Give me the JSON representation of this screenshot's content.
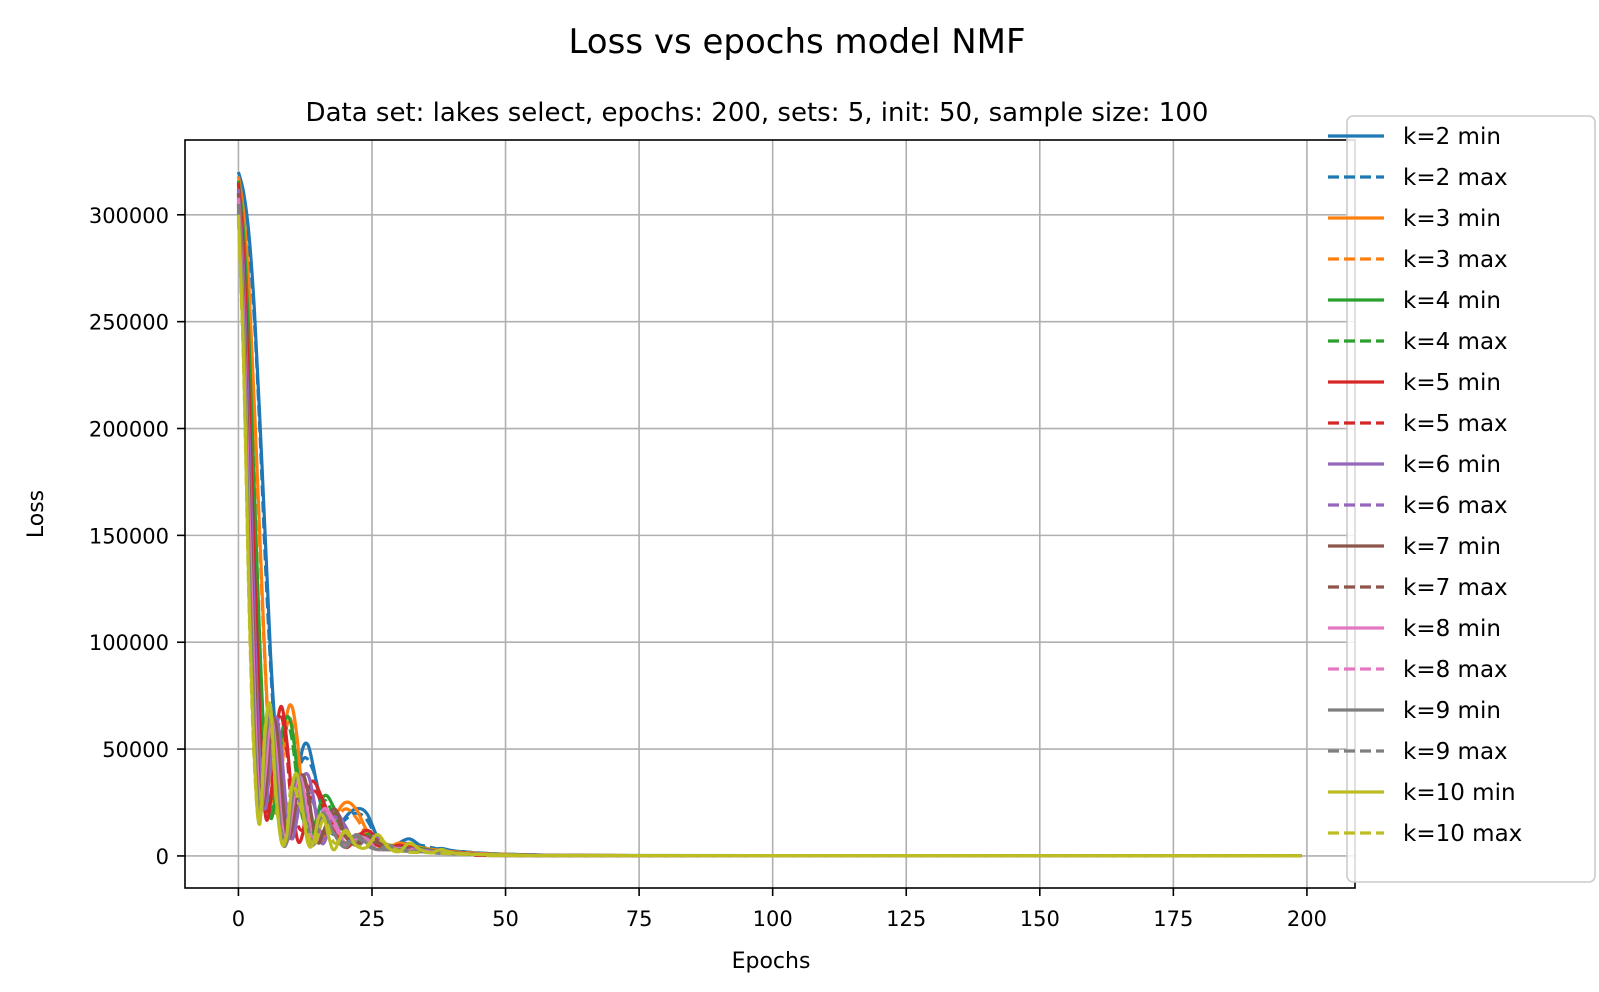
{
  "chart_data": {
    "type": "line",
    "suptitle": "Loss vs epochs model NMF",
    "title": "Data set:  lakes select, epochs: 200, sets: 5, init: 50, sample size: 100",
    "xlabel": "Epochs",
    "ylabel": "Loss",
    "xlim": [
      -10,
      209
    ],
    "ylim": [
      -15000,
      335000
    ],
    "xticks": [
      0,
      25,
      50,
      75,
      100,
      125,
      150,
      175,
      200
    ],
    "yticks": [
      0,
      50000,
      100000,
      150000,
      200000,
      250000,
      300000
    ],
    "xtick_labels": [
      "0",
      "25",
      "50",
      "75",
      "100",
      "125",
      "150",
      "175",
      "200"
    ],
    "ytick_labels": [
      "0",
      "50000",
      "100000",
      "150000",
      "200000",
      "250000",
      "300000"
    ],
    "grid": true,
    "legend_position": "right, outside axes",
    "x_range": [
      0,
      199
    ],
    "series": [
      {
        "name": "k=2 min",
        "color": "#1f77b4",
        "style": "solid",
        "x": [
          0,
          1,
          2,
          3,
          4,
          5,
          6,
          7,
          8,
          9,
          10,
          11,
          12,
          13,
          14,
          16,
          18,
          20,
          22,
          24,
          26,
          28,
          30,
          32,
          34,
          36,
          38,
          40,
          44,
          48,
          52,
          56,
          60,
          65,
          70,
          199
        ],
        "y": [
          320000,
          310000,
          290000,
          255000,
          205000,
          150000,
          95000,
          55000,
          25000,
          10000,
          20000,
          35000,
          50000,
          52000,
          42000,
          18000,
          10000,
          18000,
          22000,
          20000,
          9000,
          3000,
          6000,
          8000,
          5000,
          3000,
          3500,
          2500,
          1500,
          1000,
          700,
          500,
          300,
          200,
          100,
          100
        ]
      },
      {
        "name": "k=2 max",
        "color": "#1f77b4",
        "style": "dashed",
        "x": [
          0,
          1,
          2,
          3,
          4,
          5,
          6,
          7,
          8,
          9,
          10,
          12,
          14,
          16,
          18,
          20,
          22,
          24,
          26,
          28,
          30,
          34,
          38,
          42,
          48,
          56,
          65,
          199
        ],
        "y": [
          315000,
          305000,
          285000,
          250000,
          200000,
          140000,
          90000,
          50000,
          22000,
          12000,
          25000,
          45000,
          40000,
          20000,
          12000,
          17000,
          20000,
          17000,
          8000,
          4000,
          6000,
          5000,
          3000,
          2000,
          1000,
          500,
          200,
          100
        ]
      },
      {
        "name": "k=3 min",
        "color": "#ff7f0e",
        "style": "solid",
        "x": [
          0,
          1,
          2,
          3,
          4,
          5,
          6,
          7,
          8,
          9,
          10,
          11,
          12,
          14,
          16,
          18,
          20,
          22,
          24,
          26,
          28,
          30,
          34,
          38,
          42,
          48,
          56,
          65,
          199
        ],
        "y": [
          318000,
          300000,
          265000,
          210000,
          150000,
          90000,
          45000,
          20000,
          40000,
          65000,
          70000,
          55000,
          30000,
          10000,
          8000,
          18000,
          25000,
          22000,
          12000,
          5000,
          3000,
          6000,
          4000,
          2500,
          1500,
          800,
          400,
          200,
          100
        ]
      },
      {
        "name": "k=3 max",
        "color": "#ff7f0e",
        "style": "dashed",
        "x": [
          0,
          1,
          2,
          3,
          4,
          5,
          6,
          7,
          8,
          9,
          10,
          12,
          14,
          16,
          18,
          20,
          22,
          24,
          26,
          30,
          35,
          40,
          48,
          56,
          65,
          199
        ],
        "y": [
          314000,
          296000,
          260000,
          205000,
          145000,
          88000,
          42000,
          22000,
          38000,
          60000,
          62000,
          30000,
          12000,
          9000,
          16000,
          22000,
          18000,
          10000,
          5000,
          5000,
          3000,
          2000,
          900,
          400,
          200,
          100
        ]
      },
      {
        "name": "k=4 min",
        "color": "#2ca02c",
        "style": "solid",
        "x": [
          0,
          1,
          2,
          3,
          4,
          5,
          6,
          7,
          8,
          9,
          10,
          11,
          12,
          13,
          14,
          16,
          18,
          20,
          22,
          24,
          26,
          28,
          30,
          34,
          38,
          44,
          50,
          58,
          65,
          199
        ],
        "y": [
          316000,
          290000,
          240000,
          170000,
          100000,
          45000,
          18000,
          30000,
          55000,
          65000,
          60000,
          40000,
          20000,
          8000,
          12000,
          28000,
          22000,
          10000,
          6000,
          10000,
          9000,
          5000,
          4000,
          3500,
          2000,
          1000,
          600,
          300,
          200,
          100
        ]
      },
      {
        "name": "k=4 max",
        "color": "#2ca02c",
        "style": "dashed",
        "x": [
          0,
          1,
          2,
          3,
          4,
          5,
          6,
          7,
          8,
          9,
          10,
          12,
          14,
          16,
          18,
          20,
          22,
          24,
          26,
          30,
          36,
          44,
          52,
          60,
          199
        ],
        "y": [
          312000,
          286000,
          235000,
          165000,
          96000,
          42000,
          20000,
          32000,
          52000,
          60000,
          55000,
          18000,
          14000,
          26000,
          18000,
          9000,
          7000,
          9000,
          7000,
          4000,
          2500,
          1000,
          500,
          200,
          100
        ]
      },
      {
        "name": "k=5 min",
        "color": "#d62728",
        "style": "solid",
        "x": [
          0,
          1,
          2,
          3,
          4,
          5,
          6,
          7,
          8,
          9,
          10,
          11,
          12,
          13,
          14,
          16,
          18,
          20,
          22,
          24,
          26,
          28,
          30,
          34,
          38,
          44,
          50,
          58,
          199
        ],
        "y": [
          315000,
          280000,
          215000,
          135000,
          65000,
          20000,
          25000,
          55000,
          70000,
          55000,
          28000,
          8000,
          10000,
          28000,
          35000,
          25000,
          12000,
          4000,
          8000,
          12000,
          8000,
          3000,
          5000,
          3000,
          2000,
          1000,
          500,
          200,
          100
        ]
      },
      {
        "name": "k=5 max",
        "color": "#d62728",
        "style": "dashed",
        "x": [
          0,
          1,
          2,
          3,
          4,
          5,
          6,
          7,
          8,
          9,
          10,
          12,
          14,
          16,
          18,
          20,
          22,
          24,
          26,
          30,
          36,
          44,
          52,
          60,
          199
        ],
        "y": [
          310000,
          275000,
          210000,
          130000,
          62000,
          22000,
          27000,
          52000,
          65000,
          50000,
          25000,
          12000,
          30000,
          22000,
          10000,
          6000,
          10000,
          9000,
          5000,
          4000,
          2200,
          900,
          400,
          200,
          100
        ]
      },
      {
        "name": "k=6 min",
        "color": "#9467bd",
        "style": "solid",
        "x": [
          0,
          1,
          2,
          3,
          4,
          5,
          6,
          7,
          8,
          9,
          10,
          11,
          12,
          13,
          14,
          15,
          16,
          18,
          20,
          22,
          24,
          26,
          28,
          30,
          34,
          38,
          44,
          52,
          60,
          199
        ],
        "y": [
          312000,
          270000,
          195000,
          110000,
          45000,
          22000,
          45000,
          65000,
          50000,
          22000,
          8000,
          18000,
          35000,
          38000,
          28000,
          12000,
          6000,
          20000,
          14000,
          5000,
          8000,
          9000,
          4000,
          4000,
          3000,
          1800,
          900,
          400,
          200,
          100
        ]
      },
      {
        "name": "k=6 max",
        "color": "#9467bd",
        "style": "dashed",
        "x": [
          0,
          1,
          2,
          3,
          4,
          5,
          6,
          7,
          8,
          9,
          10,
          12,
          14,
          16,
          18,
          20,
          22,
          24,
          26,
          30,
          36,
          44,
          52,
          60,
          199
        ],
        "y": [
          308000,
          265000,
          190000,
          105000,
          42000,
          24000,
          43000,
          60000,
          45000,
          20000,
          10000,
          32000,
          25000,
          8000,
          18000,
          12000,
          6000,
          8000,
          6000,
          3500,
          2000,
          900,
          400,
          200,
          100
        ]
      },
      {
        "name": "k=7 min",
        "color": "#8c564b",
        "style": "solid",
        "x": [
          0,
          1,
          2,
          3,
          4,
          5,
          6,
          7,
          8,
          9,
          10,
          11,
          12,
          13,
          14,
          15,
          16,
          18,
          20,
          22,
          24,
          26,
          28,
          30,
          34,
          38,
          44,
          52,
          60,
          199
        ],
        "y": [
          310000,
          260000,
          175000,
          90000,
          30000,
          28000,
          58000,
          62000,
          35000,
          10000,
          12000,
          30000,
          38000,
          30000,
          14000,
          6000,
          12000,
          22000,
          10000,
          5000,
          9000,
          7000,
          3000,
          4000,
          2500,
          1500,
          800,
          400,
          200,
          100
        ]
      },
      {
        "name": "k=7 max",
        "color": "#8c564b",
        "style": "dashed",
        "x": [
          0,
          1,
          2,
          3,
          4,
          5,
          6,
          7,
          8,
          9,
          10,
          12,
          14,
          16,
          18,
          20,
          22,
          24,
          26,
          30,
          36,
          44,
          52,
          60,
          199
        ],
        "y": [
          306000,
          255000,
          170000,
          86000,
          28000,
          30000,
          55000,
          58000,
          32000,
          12000,
          14000,
          35000,
          16000,
          10000,
          20000,
          9000,
          6000,
          8000,
          6000,
          3500,
          2000,
          900,
          400,
          200,
          100
        ]
      },
      {
        "name": "k=8 min",
        "color": "#e377c2",
        "style": "solid",
        "x": [
          0,
          1,
          2,
          3,
          4,
          5,
          6,
          7,
          8,
          9,
          10,
          11,
          12,
          13,
          14,
          15,
          16,
          18,
          20,
          22,
          24,
          26,
          28,
          30,
          34,
          38,
          44,
          52,
          60,
          199
        ],
        "y": [
          308000,
          250000,
          160000,
          75000,
          22000,
          38000,
          65000,
          50000,
          18000,
          6000,
          20000,
          36000,
          34000,
          18000,
          6000,
          10000,
          22000,
          16000,
          6000,
          9000,
          8000,
          3000,
          5000,
          3000,
          2500,
          1500,
          800,
          400,
          200,
          100
        ]
      },
      {
        "name": "k=8 max",
        "color": "#e377c2",
        "style": "dashed",
        "x": [
          0,
          1,
          2,
          3,
          4,
          5,
          6,
          7,
          8,
          9,
          10,
          12,
          14,
          16,
          18,
          20,
          22,
          24,
          26,
          30,
          36,
          44,
          52,
          60,
          199
        ],
        "y": [
          304000,
          245000,
          155000,
          72000,
          24000,
          40000,
          62000,
          46000,
          17000,
          8000,
          22000,
          32000,
          8000,
          20000,
          14000,
          5000,
          8000,
          7000,
          3000,
          3500,
          2000,
          900,
          400,
          200,
          100
        ]
      },
      {
        "name": "k=9 min",
        "color": "#7f7f7f",
        "style": "solid",
        "x": [
          0,
          1,
          2,
          3,
          4,
          5,
          6,
          7,
          8,
          9,
          10,
          11,
          12,
          13,
          14,
          15,
          16,
          18,
          20,
          22,
          24,
          26,
          28,
          30,
          34,
          38,
          44,
          52,
          60,
          199
        ],
        "y": [
          305000,
          240000,
          140000,
          58000,
          18000,
          50000,
          68000,
          40000,
          10000,
          6000,
          26000,
          38000,
          28000,
          10000,
          5000,
          15000,
          20000,
          10000,
          4000,
          10000,
          6000,
          3000,
          5000,
          2500,
          2000,
          1200,
          700,
          300,
          200,
          100
        ]
      },
      {
        "name": "k=9 max",
        "color": "#7f7f7f",
        "style": "dashed",
        "x": [
          0,
          1,
          2,
          3,
          4,
          5,
          6,
          7,
          8,
          9,
          10,
          12,
          14,
          16,
          18,
          20,
          22,
          24,
          26,
          30,
          36,
          44,
          52,
          60,
          199
        ],
        "y": [
          302000,
          235000,
          136000,
          55000,
          20000,
          52000,
          65000,
          38000,
          12000,
          8000,
          28000,
          24000,
          6000,
          18000,
          10000,
          6000,
          9000,
          5000,
          3000,
          3000,
          1800,
          800,
          400,
          200,
          100
        ]
      },
      {
        "name": "k=10 min",
        "color": "#bcbd22",
        "style": "solid",
        "x": [
          0,
          1,
          2,
          3,
          4,
          5,
          6,
          7,
          8,
          9,
          10,
          11,
          12,
          13,
          14,
          15,
          16,
          17,
          18,
          20,
          22,
          24,
          26,
          28,
          30,
          32,
          34,
          36,
          38,
          40,
          44,
          52,
          60,
          199
        ],
        "y": [
          300000,
          230000,
          120000,
          45000,
          15000,
          58000,
          70000,
          30000,
          7000,
          9000,
          32000,
          38000,
          22000,
          6000,
          6000,
          18000,
          18000,
          8000,
          3000,
          12000,
          5000,
          4000,
          10000,
          4000,
          2000,
          6000,
          3000,
          1500,
          3000,
          1500,
          800,
          400,
          200,
          100
        ]
      },
      {
        "name": "k=10 max",
        "color": "#bcbd22",
        "style": "dashed",
        "x": [
          0,
          1,
          2,
          3,
          4,
          5,
          6,
          7,
          8,
          9,
          10,
          12,
          14,
          16,
          18,
          20,
          22,
          24,
          26,
          30,
          36,
          44,
          52,
          60,
          199
        ],
        "y": [
          298000,
          226000,
          116000,
          42000,
          17000,
          60000,
          66000,
          28000,
          9000,
          10000,
          33000,
          20000,
          5000,
          17000,
          6000,
          11000,
          5000,
          5000,
          8000,
          2500,
          1500,
          700,
          300,
          150,
          100
        ]
      }
    ]
  }
}
